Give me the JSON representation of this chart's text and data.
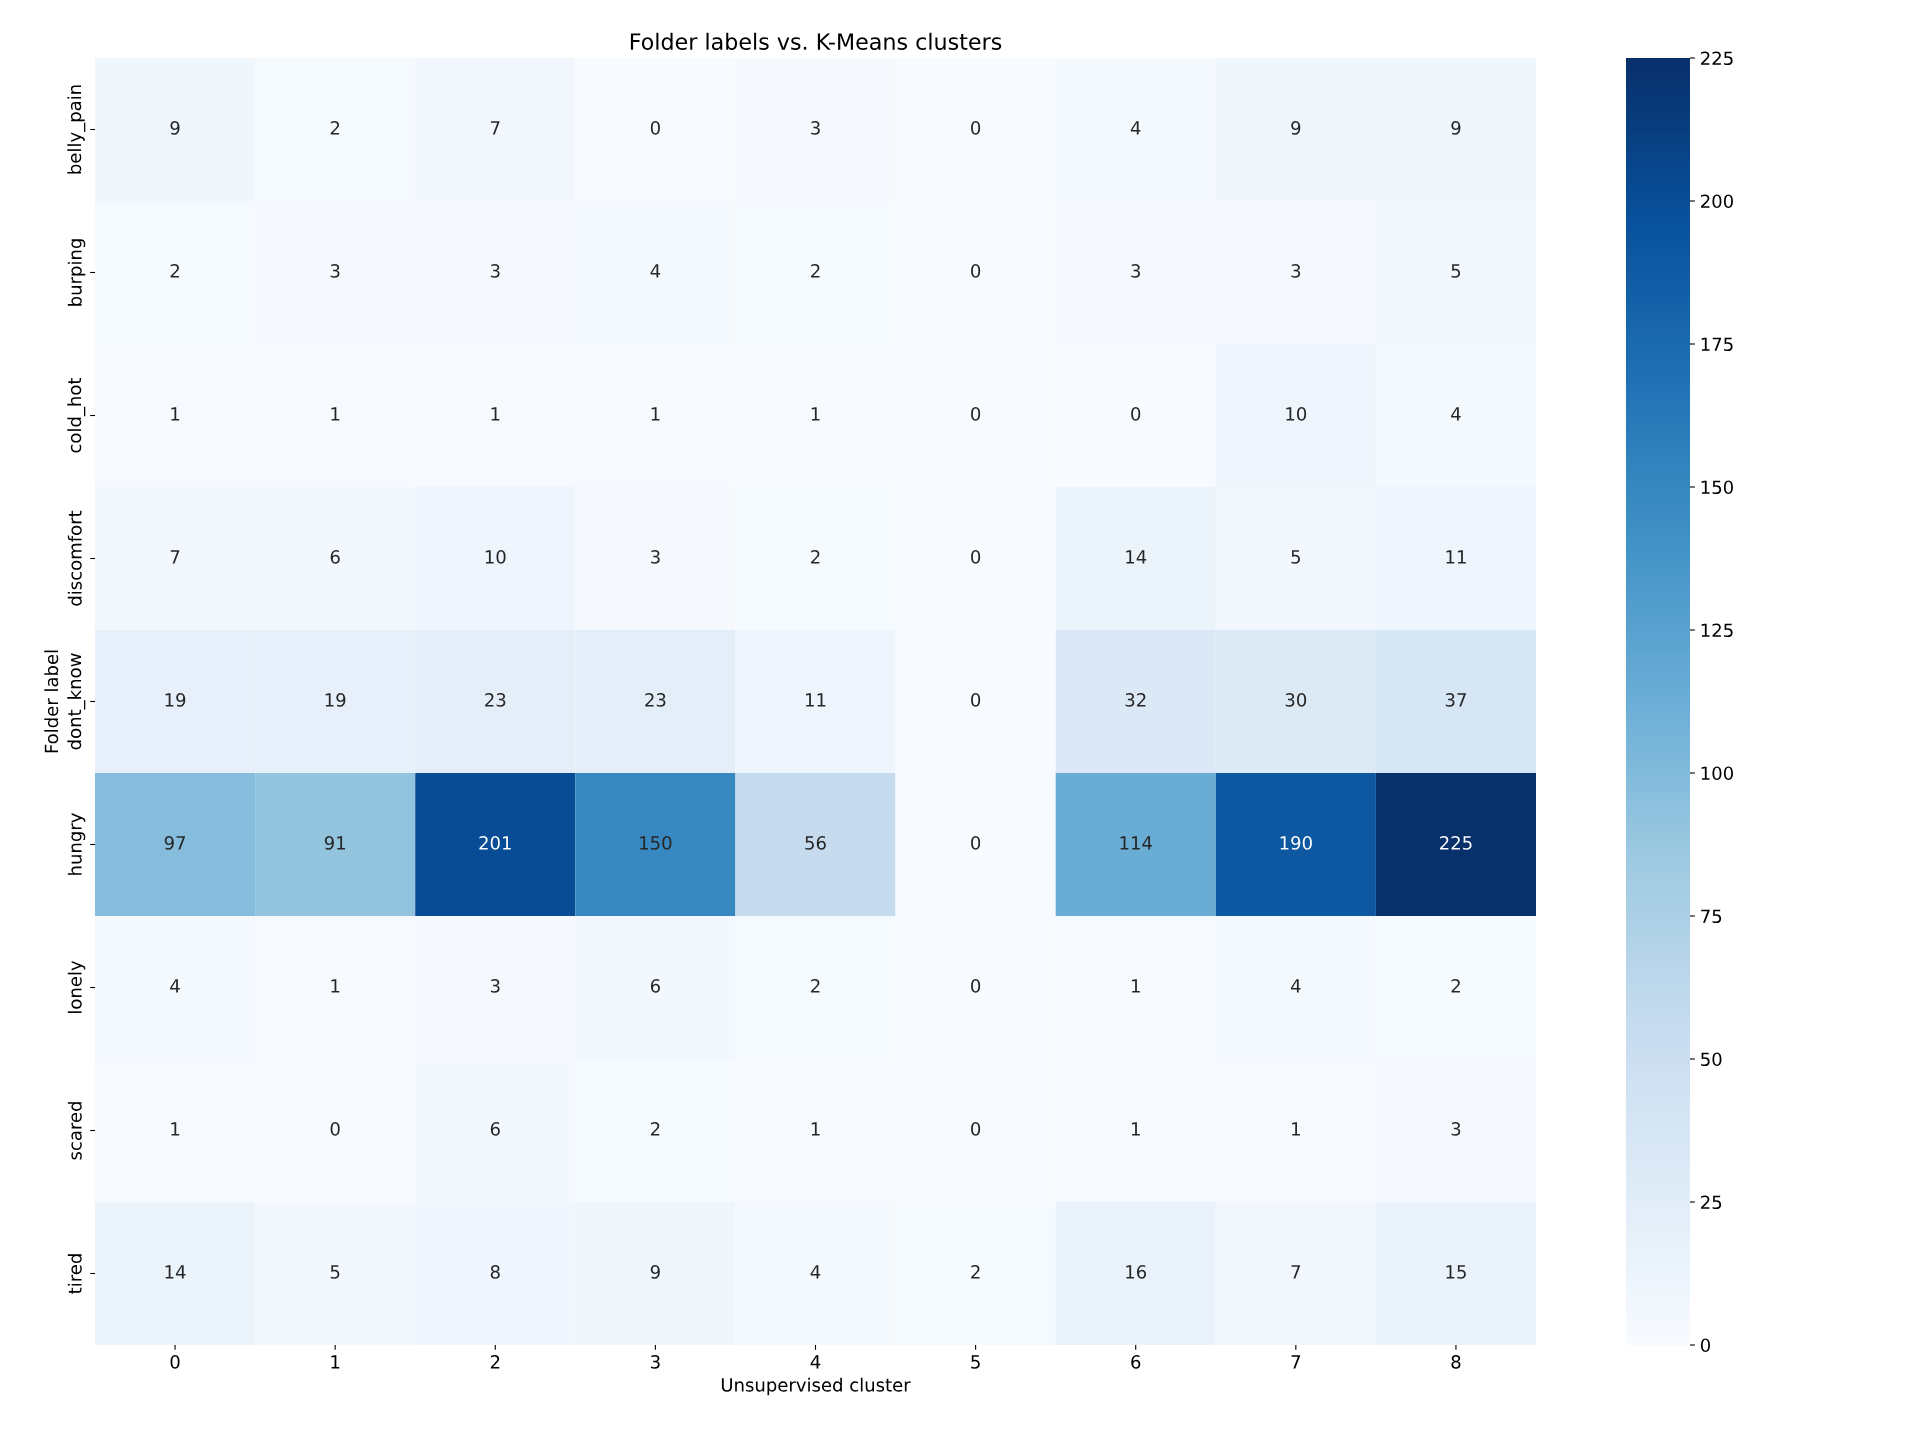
{
  "chart_data": {
    "type": "heatmap",
    "title": "Folder labels vs. K-Means clusters",
    "xlabel": "Unsupervised cluster",
    "ylabel": "Folder label",
    "categories": [
      "0",
      "1",
      "2",
      "3",
      "4",
      "5",
      "6",
      "7",
      "8"
    ],
    "y_categories": [
      "belly_pain",
      "burping",
      "cold_hot",
      "discomfort",
      "dont_know",
      "hungry",
      "lonely",
      "scared",
      "tired"
    ],
    "cells": [
      [
        9,
        2,
        7,
        0,
        3,
        0,
        4,
        9,
        9
      ],
      [
        2,
        3,
        3,
        4,
        2,
        0,
        3,
        3,
        5
      ],
      [
        1,
        1,
        1,
        1,
        1,
        0,
        0,
        10,
        4
      ],
      [
        7,
        6,
        10,
        3,
        2,
        0,
        14,
        5,
        11
      ],
      [
        19,
        19,
        23,
        23,
        11,
        0,
        32,
        30,
        37
      ],
      [
        97,
        91,
        201,
        150,
        56,
        0,
        114,
        190,
        225
      ],
      [
        4,
        1,
        3,
        6,
        2,
        0,
        1,
        4,
        2
      ],
      [
        1,
        0,
        6,
        2,
        1,
        0,
        1,
        1,
        3
      ],
      [
        14,
        5,
        8,
        9,
        4,
        2,
        16,
        7,
        15
      ]
    ],
    "data_labels": true,
    "clim": [
      0,
      225
    ],
    "cticks": [
      0,
      25,
      50,
      75,
      100,
      125,
      150,
      175,
      200,
      225
    ]
  }
}
